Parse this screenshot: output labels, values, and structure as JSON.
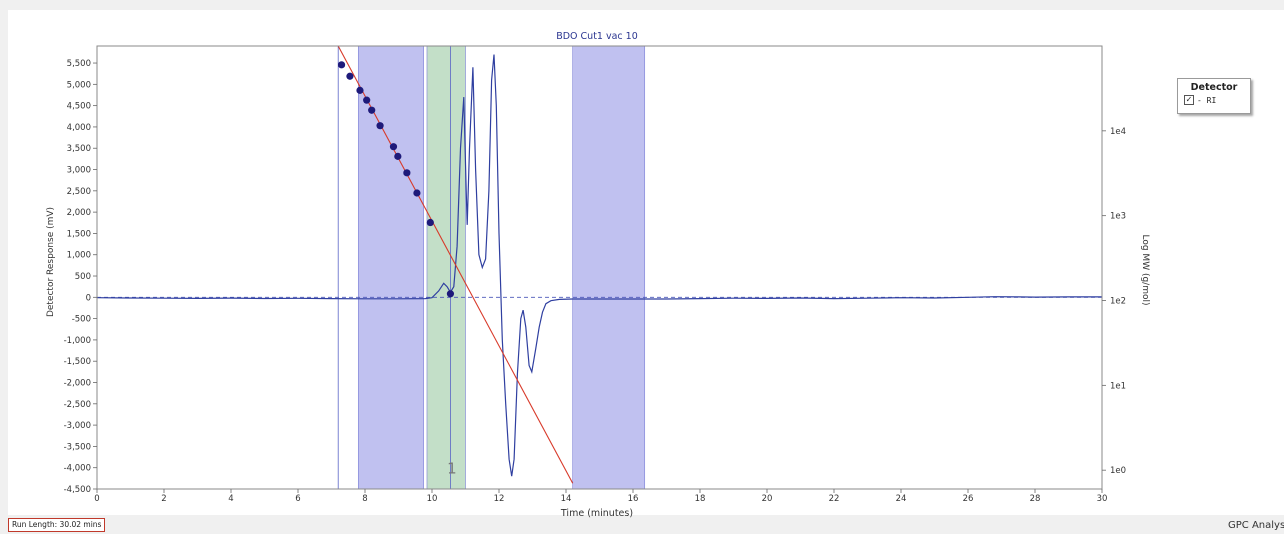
{
  "chart_data": {
    "type": "line",
    "title": "BDO Cut1 vac 10",
    "xlabel": "Time (minutes)",
    "ylabel": "Detector Response (mV)",
    "y2label": "Log MW (g/mol)",
    "xlim": [
      0,
      30
    ],
    "ylim": [
      -4500,
      5900
    ],
    "x_ticks": [
      0,
      2,
      4,
      6,
      8,
      10,
      12,
      14,
      16,
      18,
      20,
      22,
      24,
      26,
      28,
      30
    ],
    "y_ticks": [
      -4500,
      -4000,
      -3500,
      -3000,
      -2500,
      -2000,
      -1500,
      -1000,
      -500,
      0,
      500,
      1000,
      1500,
      2000,
      2500,
      3000,
      3500,
      4000,
      4500,
      5000,
      5500
    ],
    "y_tick_labels": [
      "-4,500",
      "-4,000",
      "-3,500",
      "-3,000",
      "-2,500",
      "-2,000",
      "-1,500",
      "-1,000",
      "-500",
      "0",
      "500",
      "1,000",
      "1,500",
      "2,000",
      "2,500",
      "3,000",
      "3,500",
      "4,000",
      "4,500",
      "5,000",
      "5,500"
    ],
    "y2_scale": "log",
    "y2_ticks": [
      1,
      10,
      100,
      1000,
      10000
    ],
    "y2_tick_labels": [
      "1e0",
      "1e1",
      "1e2",
      "1e3",
      "1e4"
    ],
    "grid": false,
    "legend": "right",
    "regions": [
      {
        "x0": 7.8,
        "x1": 9.75,
        "color": "#b0b2ec"
      },
      {
        "x0": 9.85,
        "x1": 11.0,
        "color": "#b4d7ba"
      },
      {
        "x0": 14.2,
        "x1": 16.35,
        "color": "#b0b2ec"
      }
    ],
    "markers": [
      {
        "x": 7.2
      },
      {
        "x": 10.55
      }
    ],
    "region_label": {
      "x": 10.45,
      "y": -4000,
      "text": "1"
    },
    "series": [
      {
        "name": "RI",
        "color": "#2f3fa0",
        "points": [
          [
            0,
            -10
          ],
          [
            1,
            -15
          ],
          [
            2,
            -20
          ],
          [
            3,
            -25
          ],
          [
            4,
            -18
          ],
          [
            5,
            -28
          ],
          [
            6,
            -22
          ],
          [
            7,
            -30
          ],
          [
            8,
            -35
          ],
          [
            9,
            -35
          ],
          [
            9.8,
            -30
          ],
          [
            10.0,
            -10
          ],
          [
            10.2,
            150
          ],
          [
            10.35,
            330
          ],
          [
            10.45,
            250
          ],
          [
            10.55,
            120
          ],
          [
            10.65,
            250
          ],
          [
            10.75,
            1200
          ],
          [
            10.85,
            3500
          ],
          [
            10.95,
            4700
          ],
          [
            11.02,
            2500
          ],
          [
            11.05,
            1700
          ],
          [
            11.12,
            3500
          ],
          [
            11.22,
            5400
          ],
          [
            11.3,
            3000
          ],
          [
            11.4,
            1000
          ],
          [
            11.5,
            700
          ],
          [
            11.6,
            900
          ],
          [
            11.7,
            2500
          ],
          [
            11.78,
            5100
          ],
          [
            11.85,
            5700
          ],
          [
            11.92,
            4500
          ],
          [
            12.0,
            1500
          ],
          [
            12.1,
            -1000
          ],
          [
            12.2,
            -2500
          ],
          [
            12.3,
            -3800
          ],
          [
            12.38,
            -4200
          ],
          [
            12.45,
            -3800
          ],
          [
            12.55,
            -1800
          ],
          [
            12.65,
            -500
          ],
          [
            12.72,
            -300
          ],
          [
            12.8,
            -700
          ],
          [
            12.9,
            -1600
          ],
          [
            12.98,
            -1750
          ],
          [
            13.1,
            -1200
          ],
          [
            13.2,
            -700
          ],
          [
            13.3,
            -350
          ],
          [
            13.4,
            -150
          ],
          [
            13.55,
            -80
          ],
          [
            13.8,
            -50
          ],
          [
            14.2,
            -40
          ],
          [
            15,
            -40
          ],
          [
            16,
            -40
          ],
          [
            17,
            -40
          ],
          [
            18,
            -30
          ],
          [
            19,
            -20
          ],
          [
            20,
            -25
          ],
          [
            21,
            -15
          ],
          [
            22,
            -30
          ],
          [
            23,
            -20
          ],
          [
            24,
            -10
          ],
          [
            25,
            -15
          ],
          [
            26,
            0
          ],
          [
            26.8,
            15
          ],
          [
            27.5,
            10
          ],
          [
            28,
            5
          ],
          [
            29,
            10
          ],
          [
            30,
            10
          ]
        ]
      },
      {
        "color": "#d83a2a",
        "axis": "y2",
        "points": [
          [
            7.2,
            100000
          ],
          [
            14.2,
            0.7
          ]
        ]
      }
    ],
    "calibration_points": {
      "axis": "y2",
      "color": "#1e1a7a",
      "points": [
        [
          7.3,
          60000
        ],
        [
          7.55,
          44000
        ],
        [
          7.85,
          30000
        ],
        [
          8.05,
          23000
        ],
        [
          8.2,
          17500
        ],
        [
          8.45,
          11500
        ],
        [
          8.85,
          6500
        ],
        [
          8.98,
          5000
        ],
        [
          9.25,
          3200
        ],
        [
          9.55,
          1850
        ],
        [
          9.95,
          830
        ],
        [
          10.55,
          120
        ]
      ]
    },
    "baseline": {
      "y": 0,
      "color": "#4a56b8"
    }
  },
  "legend": {
    "title": "Detector",
    "check": "✓",
    "item_label": "- RI"
  },
  "status": {
    "run_length": "Run Length: 30.02 mins",
    "footer": "GPC Analysi"
  }
}
